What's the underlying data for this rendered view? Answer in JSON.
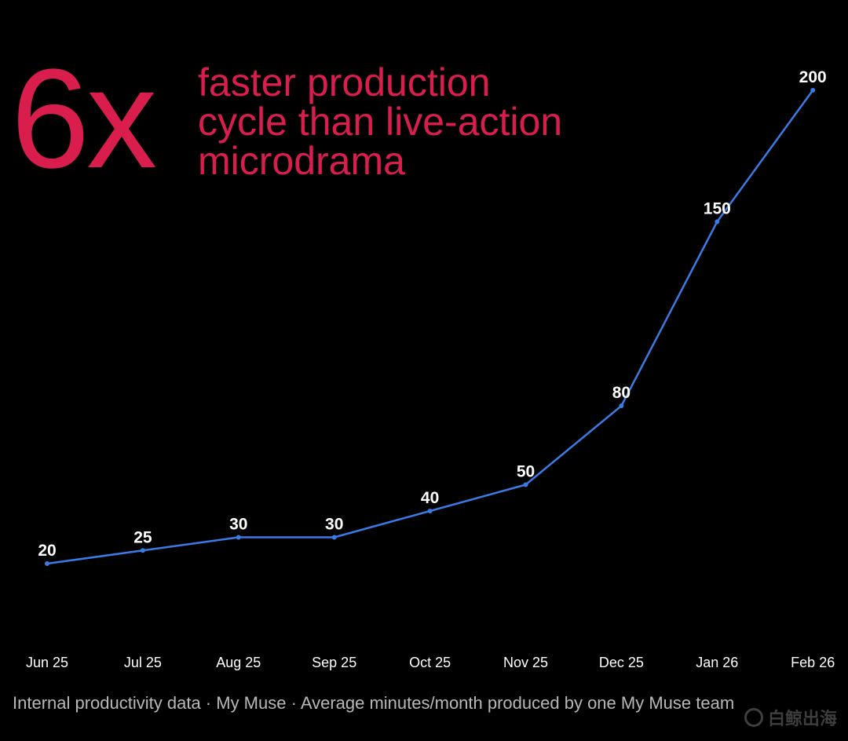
{
  "headline": {
    "stat": "6x",
    "lines": [
      "faster production",
      "cycle than live-action",
      "microdrama"
    ]
  },
  "footer": {
    "text": "Internal productivity data · My Muse · Average minutes/month produced by one My Muse team"
  },
  "watermark": {
    "text": "白鲸出海"
  },
  "colors": {
    "background": "#000000",
    "accent": "#d91e4e",
    "line": "#3b7be5",
    "labels": "#ffffff",
    "footer": "#b8b8b8"
  },
  "chart_data": {
    "type": "line",
    "categories": [
      "Jun 25",
      "Jul 25",
      "Aug 25",
      "Sep 25",
      "Oct 25",
      "Nov 25",
      "Dec 25",
      "Jan 26",
      "Feb 26"
    ],
    "series": [
      {
        "values": [
          20,
          25,
          30,
          30,
          40,
          50,
          80,
          150,
          200
        ]
      }
    ],
    "data_labels": true,
    "grid": false,
    "ylim": [
      0,
      200
    ],
    "xlabel": "",
    "ylabel": ""
  }
}
